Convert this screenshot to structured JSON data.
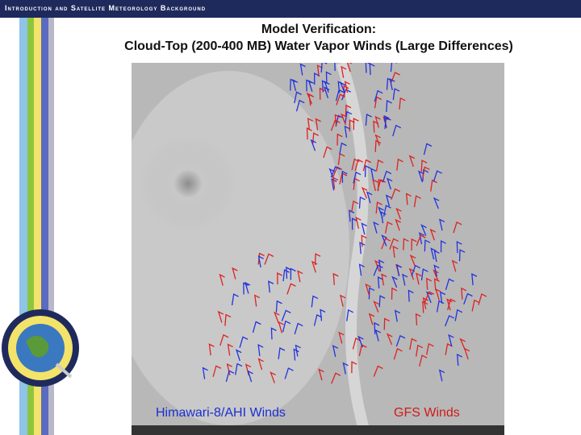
{
  "header": {
    "title": "Introduction and Satellite Meteorology Background"
  },
  "slide": {
    "title_line1": "Model Verification:",
    "title_line2": "Cloud-Top (200-400 MB) Water Vapor Winds (Large Differences)"
  },
  "image": {
    "labels": [
      "Himawari-8/AHI Winds",
      "GFS Winds"
    ]
  }
}
